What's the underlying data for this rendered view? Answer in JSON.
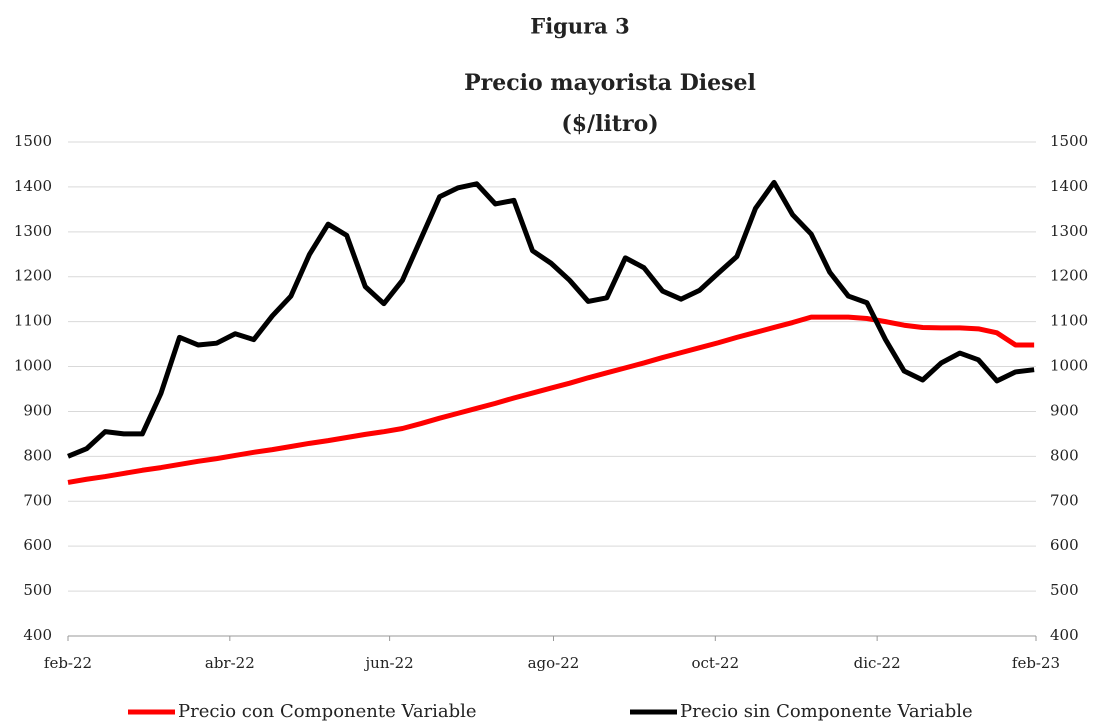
{
  "chart_data": {
    "type": "line",
    "heading": "Figura 3",
    "title": "Precio mayorista Diesel",
    "subtitle": "($/litro)",
    "x": [
      0,
      1,
      2,
      3,
      4,
      5,
      6,
      7,
      8,
      9,
      10,
      11,
      12,
      13,
      14,
      15,
      16,
      17,
      18,
      19,
      20,
      21,
      22,
      23,
      24,
      25,
      26,
      27,
      28,
      29,
      30,
      31,
      32,
      33,
      34,
      35,
      36,
      37,
      38,
      39,
      40,
      41,
      42,
      43,
      44,
      45,
      46,
      47,
      48,
      49,
      50,
      51,
      52
    ],
    "xlim": [
      0,
      52.1
    ],
    "xticks": [
      {
        "value": 0,
        "label": "feb-22"
      },
      {
        "value": 8.71,
        "label": "abr-22"
      },
      {
        "value": 17.31,
        "label": "jun-22"
      },
      {
        "value": 26.13,
        "label": "ago-22"
      },
      {
        "value": 34.84,
        "label": "oct-22"
      },
      {
        "value": 43.55,
        "label": "dic-22"
      },
      {
        "value": 52.1,
        "label": "feb-23"
      }
    ],
    "ylim": [
      400,
      1500
    ],
    "yticks": [
      400,
      500,
      600,
      700,
      800,
      900,
      1000,
      1100,
      1200,
      1300,
      1400,
      1500
    ],
    "y2lim": [
      400,
      1500
    ],
    "y2ticks": [
      400,
      500,
      600,
      700,
      800,
      900,
      1000,
      1100,
      1200,
      1300,
      1400,
      1500
    ],
    "grid": true,
    "legend": "bottom",
    "series": [
      {
        "name": "Precio con Componente Variable",
        "color": "#ff0000",
        "values": [
          742,
          749,
          755,
          762,
          769,
          775,
          782,
          789,
          795,
          802,
          809,
          815,
          822,
          829,
          835,
          842,
          849,
          855,
          862,
          873,
          885,
          896,
          907,
          918,
          930,
          941,
          952,
          963,
          975,
          986,
          997,
          1008,
          1020,
          1031,
          1042,
          1053,
          1065,
          1076,
          1087,
          1098,
          1110,
          1110,
          1110,
          1107,
          1100,
          1092,
          1087,
          1086,
          1086,
          1084,
          1075,
          1048,
          1048
        ]
      },
      {
        "name": "Precio sin Componente Variable",
        "color": "#000000",
        "values": [
          800,
          817,
          855,
          850,
          850,
          940,
          1065,
          1048,
          1052,
          1073,
          1060,
          1113,
          1157,
          1250,
          1317,
          1292,
          1178,
          1140,
          1192,
          1285,
          1378,
          1398,
          1407,
          1362,
          1370,
          1258,
          1230,
          1192,
          1145,
          1153,
          1242,
          1220,
          1168,
          1150,
          1170,
          1208,
          1245,
          1352,
          1410,
          1338,
          1295,
          1210,
          1157,
          1142,
          1060,
          990,
          970,
          1008,
          1030,
          1015,
          968,
          988,
          993
        ]
      }
    ]
  }
}
